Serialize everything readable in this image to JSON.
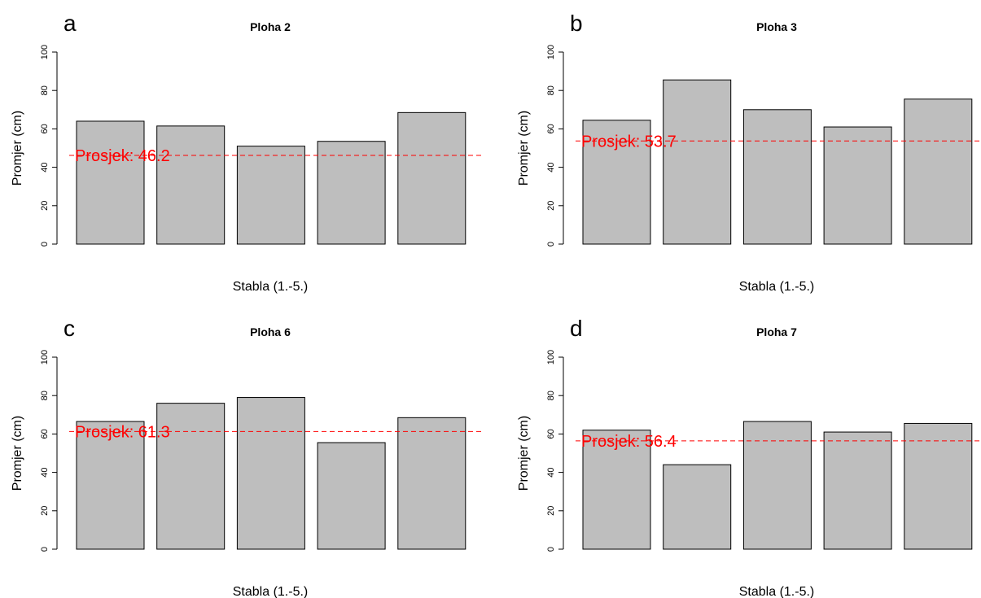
{
  "chart_data": [
    {
      "type": "bar",
      "panel_letter": "a",
      "title": "Ploha 2",
      "xlabel": "Stabla (1.-5.)",
      "ylabel": "Promjer (cm)",
      "ylim": [
        0,
        100
      ],
      "yticks": [
        0,
        20,
        40,
        60,
        80,
        100
      ],
      "values": [
        64,
        61.5,
        51,
        53.5,
        68.5
      ],
      "mean_line": {
        "value": 46.2,
        "label": "Prosjek: 46.2"
      }
    },
    {
      "type": "bar",
      "panel_letter": "b",
      "title": "Ploha 3",
      "xlabel": "Stabla (1.-5.)",
      "ylabel": "Promjer (cm)",
      "ylim": [
        0,
        100
      ],
      "yticks": [
        0,
        20,
        40,
        60,
        80,
        100
      ],
      "values": [
        64.5,
        85.5,
        70,
        61,
        75.5
      ],
      "mean_line": {
        "value": 53.7,
        "label": "Prosjek: 53.7"
      }
    },
    {
      "type": "bar",
      "panel_letter": "c",
      "title": "Ploha 6",
      "xlabel": "Stabla (1.-5.)",
      "ylabel": "Promjer (cm)",
      "ylim": [
        0,
        100
      ],
      "yticks": [
        0,
        20,
        40,
        60,
        80,
        100
      ],
      "values": [
        66.5,
        76,
        79,
        55.5,
        68.5
      ],
      "mean_line": {
        "value": 61.3,
        "label": "Prosjek: 61.3"
      }
    },
    {
      "type": "bar",
      "panel_letter": "d",
      "title": "Ploha 7",
      "xlabel": "Stabla (1.-5.)",
      "ylabel": "Promjer (cm)",
      "ylim": [
        0,
        100
      ],
      "yticks": [
        0,
        20,
        40,
        60,
        80,
        100
      ],
      "values": [
        62,
        44,
        66.5,
        61,
        65.5
      ],
      "mean_line": {
        "value": 56.4,
        "label": "Prosjek: 56.4"
      }
    }
  ],
  "colors": {
    "bar_fill": "#bebebe",
    "bar_stroke": "#000000",
    "mean_line": "#ff0000",
    "axis": "#000000",
    "text": "#000000",
    "background": "#ffffff"
  }
}
